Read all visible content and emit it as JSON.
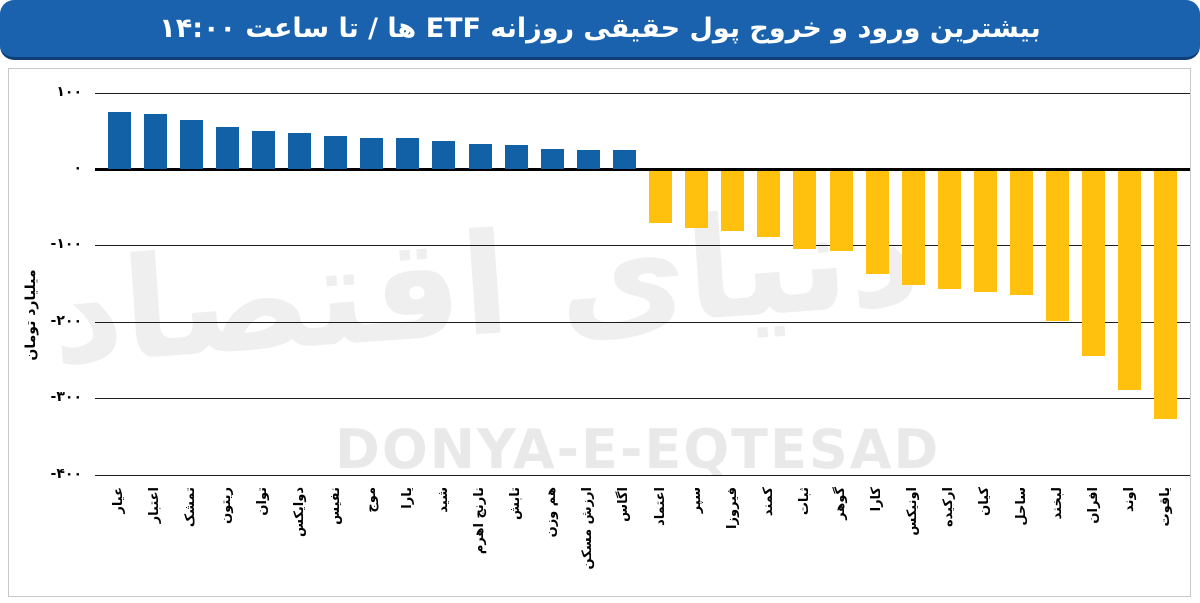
{
  "header": {
    "title": "بیشترین ورود و خروج پول حقیقی روزانه ETF ها / تا ساعت ۱۴:۰۰"
  },
  "colors": {
    "header_bg": "#1A62AE",
    "positive_bar": "#1261A7",
    "negative_bar": "#FFC10E"
  },
  "watermark": {
    "latin": "DONYA-E-EQTESAD",
    "persian": "دنیای اقتصاد"
  },
  "chart_data": {
    "type": "bar",
    "title": "بیشترین ورود و خروج پول حقیقی روزانه ETF ها / تا ساعت ۱۴:۰۰",
    "ylabel": "میلیارد تومان",
    "ylim": [
      -400,
      100
    ],
    "grid": true,
    "legend": "none",
    "yticks": [
      {
        "value": 100,
        "label": "۱۰۰"
      },
      {
        "value": 0,
        "label": "۰"
      },
      {
        "value": -100,
        "label": "-۱۰۰"
      },
      {
        "value": -200,
        "label": "-۲۰۰"
      },
      {
        "value": -300,
        "label": "-۳۰۰"
      },
      {
        "value": -400,
        "label": "-۴۰۰"
      }
    ],
    "categories": [
      "عیار",
      "اعتبار",
      "تمشک",
      "ریتون",
      "توان",
      "دوایکس",
      "نفیس",
      "موج",
      "یارا",
      "شید",
      "نارنج اهرم",
      "تابش",
      "هم وزن",
      "ارزش مسکن",
      "اگاس",
      "اعتماد",
      "سپر",
      "فیروزا",
      "کمند",
      "ثبات",
      "گوهر",
      "کارا",
      "اونیکس",
      "ارکیده",
      "کیان",
      "ساحل",
      "لبخند",
      "افران",
      "اوند",
      "یاقوت"
    ],
    "values": [
      75,
      72,
      64,
      55,
      50,
      47,
      43,
      41,
      40,
      36,
      33,
      32,
      26,
      25,
      25,
      -68,
      -75,
      -79,
      -87,
      -102,
      -105,
      -135,
      -149,
      -154,
      -158,
      -162,
      -196,
      -242,
      -287,
      -324
    ]
  }
}
